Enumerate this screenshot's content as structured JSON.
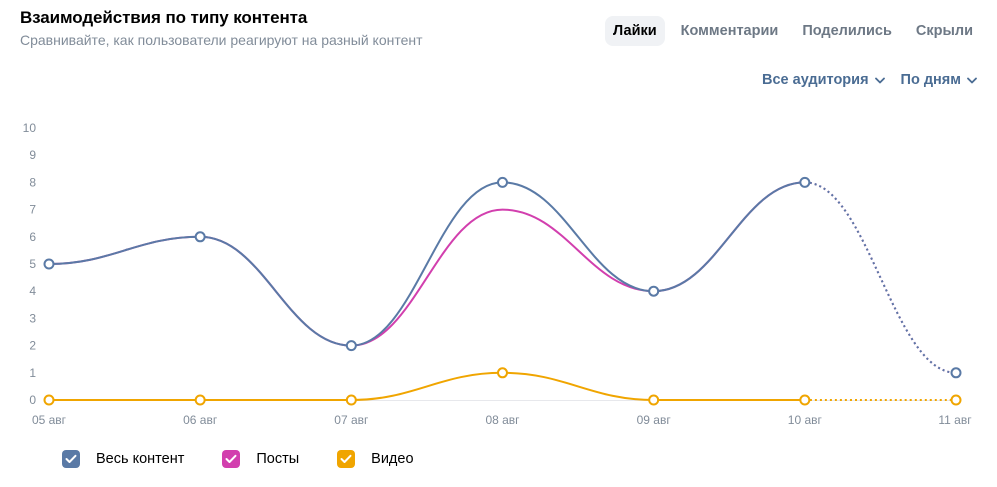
{
  "header": {
    "title": "Взаимодействия по типу контента",
    "subtitle": "Сравнивайте, как пользователи реагируют на разный контент"
  },
  "tabs": [
    {
      "label": "Лайки",
      "active": true
    },
    {
      "label": "Комментарии",
      "active": false
    },
    {
      "label": "Поделились",
      "active": false
    },
    {
      "label": "Скрыли",
      "active": false
    }
  ],
  "filters": {
    "audience_label": "Все аудитория",
    "period_label": "По дням",
    "chevron_icon": "chevron-down-icon"
  },
  "colors": {
    "all": "#5a7aa6",
    "posts": "#d23fae",
    "video": "#f0a500",
    "grid": "#e7e8ec",
    "tick": "#818c99"
  },
  "chart_data": {
    "type": "line",
    "x": [
      "05 авг",
      "06 авг",
      "07 авг",
      "08 авг",
      "09 авг",
      "10 авг",
      "11 авг"
    ],
    "ylim": [
      0,
      10
    ],
    "yticks": [
      0,
      1,
      2,
      3,
      4,
      5,
      6,
      7,
      8,
      9,
      10
    ],
    "series": [
      {
        "name": "Весь контент",
        "key": "all",
        "values": [
          5,
          6,
          2,
          8,
          4,
          8,
          1
        ],
        "markers": true,
        "dashed_last_segment": true
      },
      {
        "name": "Посты",
        "key": "posts",
        "values": [
          5,
          6,
          2,
          7,
          4,
          8,
          1
        ],
        "markers": false,
        "dashed_last_segment": true
      },
      {
        "name": "Видео",
        "key": "video",
        "values": [
          0,
          0,
          0,
          1,
          0,
          0,
          0
        ],
        "markers": true,
        "dashed_last_segment": true
      }
    ],
    "legend_position": "bottom-left",
    "grid": false
  }
}
